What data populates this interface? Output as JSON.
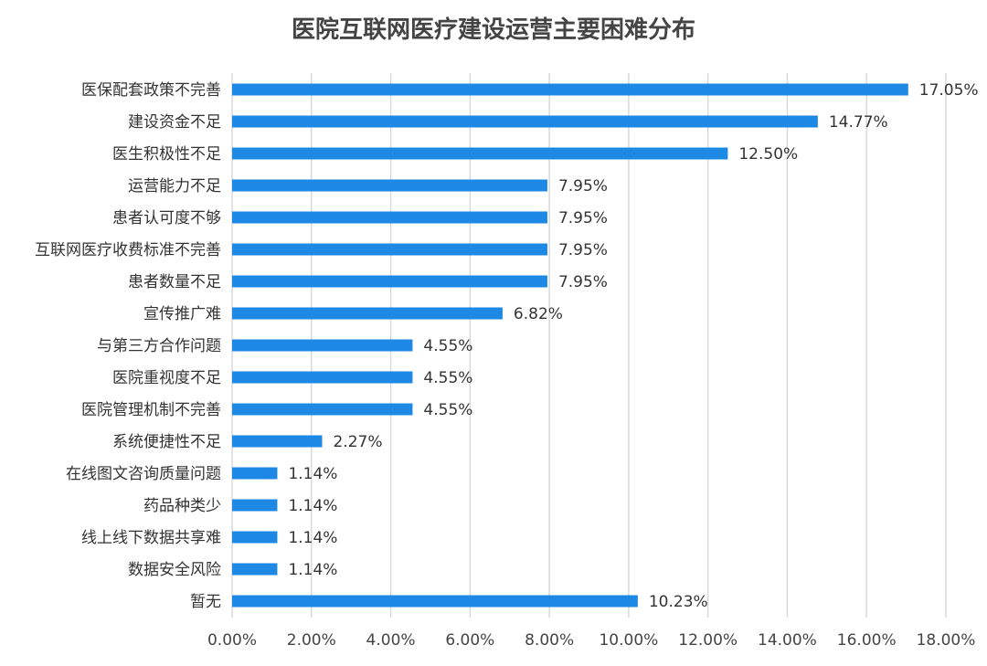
{
  "chart_data": {
    "type": "bar",
    "orientation": "horizontal",
    "title": "医院互联网医疗建设运营主要困难分布",
    "xlabel": "",
    "ylabel": "",
    "xlim": [
      0,
      18
    ],
    "grid": true,
    "legend": "none",
    "bar_color": "#1E88E5",
    "grid_color": "#D9D9D9",
    "tick_labels": [
      "0.00%",
      "2.00%",
      "4.00%",
      "6.00%",
      "8.00%",
      "10.00%",
      "12.00%",
      "14.00%",
      "16.00%",
      "18.00%"
    ],
    "tick_values": [
      0,
      2,
      4,
      6,
      8,
      10,
      12,
      14,
      16,
      18
    ],
    "categories": [
      "医保配套政策不完善",
      "建设资金不足",
      "医生积极性不足",
      "运营能力不足",
      "患者认可度不够",
      "互联网医疗收费标准不完善",
      "患者数量不足",
      "宣传推广难",
      "与第三方合作问题",
      "医院重视度不足",
      "医院管理机制不完善",
      "系统便捷性不足",
      "在线图文咨询质量问题",
      "药品种类少",
      "线上线下数据共享难",
      "数据安全风险",
      "暂无"
    ],
    "values": [
      17.05,
      14.77,
      12.5,
      7.95,
      7.95,
      7.95,
      7.95,
      6.82,
      4.55,
      4.55,
      4.55,
      2.27,
      1.14,
      1.14,
      1.14,
      1.14,
      10.23
    ],
    "data_labels": [
      "17.05%",
      "14.77%",
      "12.50%",
      "7.95%",
      "7.95%",
      "7.95%",
      "7.95%",
      "6.82%",
      "4.55%",
      "4.55%",
      "4.55%",
      "2.27%",
      "1.14%",
      "1.14%",
      "1.14%",
      "1.14%",
      "10.23%"
    ]
  }
}
